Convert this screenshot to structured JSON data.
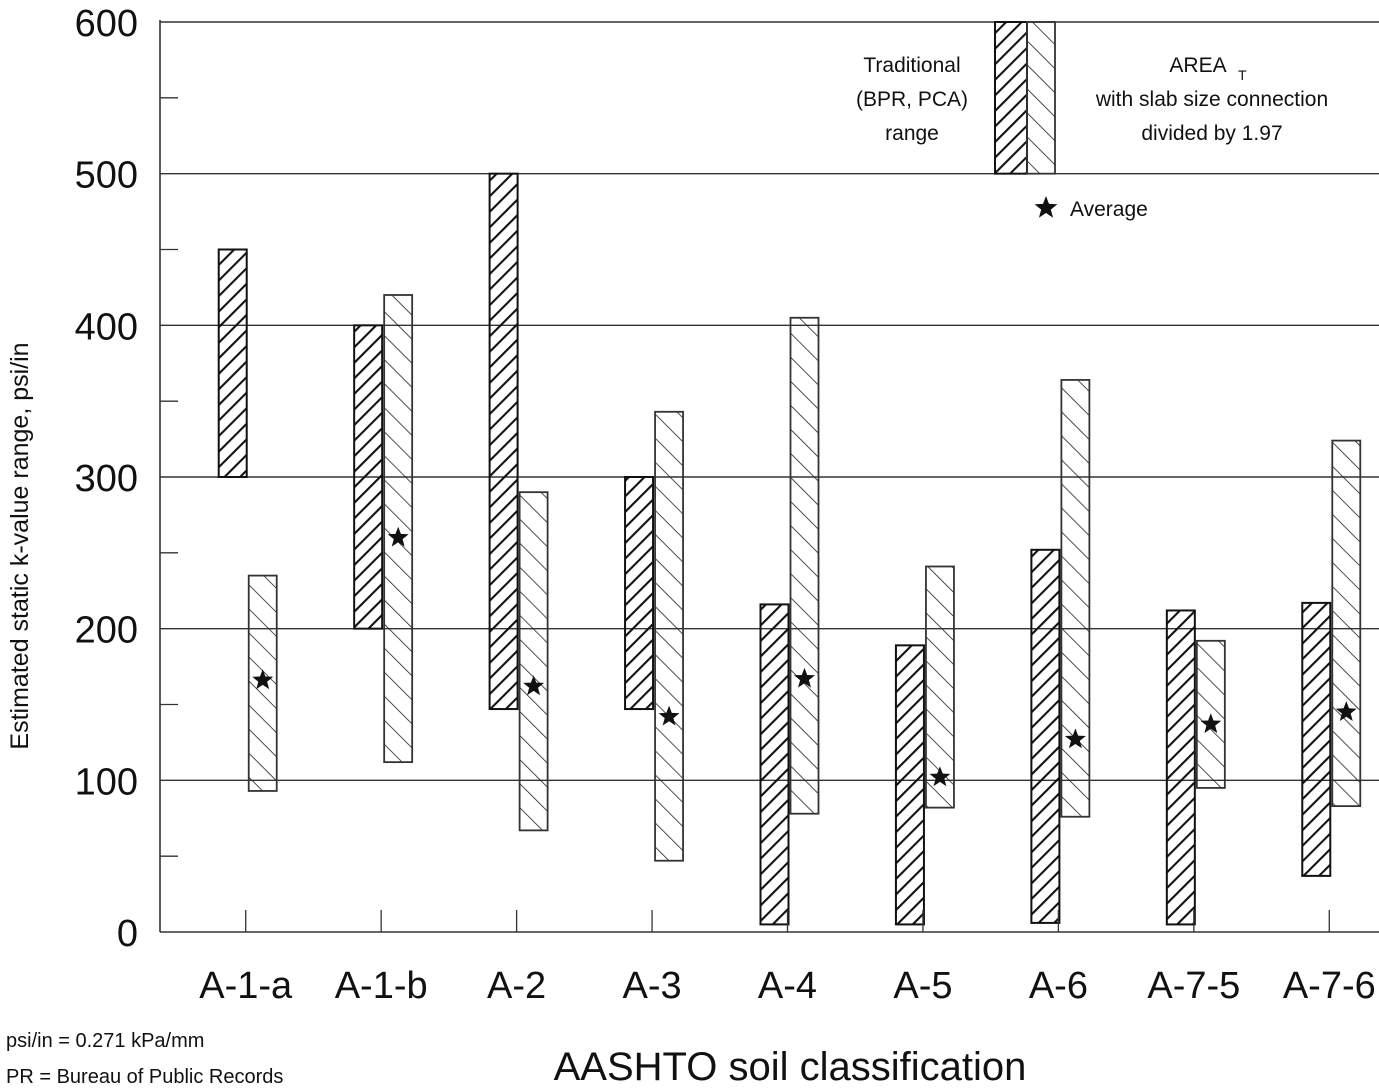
{
  "chart_data": {
    "type": "bar",
    "subtype": "floating-range",
    "categories": [
      "A-1-a",
      "A-1-b",
      "A-2",
      "A-3",
      "A-4",
      "A-5",
      "A-6",
      "A-7-5",
      "A-7-6"
    ],
    "series": [
      {
        "name": "Traditional (BPR, PCA) range",
        "pattern": "dense-forward-hatch",
        "ranges": [
          [
            300,
            450
          ],
          [
            200,
            400
          ],
          [
            147,
            500
          ],
          [
            147,
            300
          ],
          [
            5,
            216
          ],
          [
            5,
            189
          ],
          [
            6,
            252
          ],
          [
            5,
            212
          ],
          [
            37,
            217
          ]
        ]
      },
      {
        "name": "AREA_T with slab size connection divided by 1.97",
        "pattern": "sparse-back-hatch",
        "ranges": [
          [
            93,
            235
          ],
          [
            112,
            420
          ],
          [
            67,
            290
          ],
          [
            47,
            343
          ],
          [
            78,
            405
          ],
          [
            82,
            241
          ],
          [
            76,
            364
          ],
          [
            95,
            192
          ],
          [
            83,
            324
          ]
        ],
        "average": [
          166,
          260,
          162,
          142,
          167,
          102,
          127,
          137,
          145
        ]
      }
    ],
    "legend": {
      "traditional_lines": [
        "Traditional",
        "(BPR, PCA)",
        "range"
      ],
      "area_lines": [
        "AREA",
        "with slab size connection",
        "divided by 1.97"
      ],
      "area_subscript": "T",
      "average_label": "Average",
      "placement": "top-right"
    },
    "xlabel": "AASHTO soil classification",
    "ylabel": "Estimated static k-value range, psi/in",
    "ylim": [
      0,
      600
    ],
    "y_ticks": [
      0,
      100,
      200,
      300,
      400,
      500,
      600
    ],
    "y_minor_step": 50,
    "grid": true,
    "footnotes": [
      "psi/in = 0.271 kPa/mm",
      "PR = Bureau of Public Records"
    ]
  },
  "colors": {
    "stroke": "#111111",
    "background": "#ffffff"
  }
}
